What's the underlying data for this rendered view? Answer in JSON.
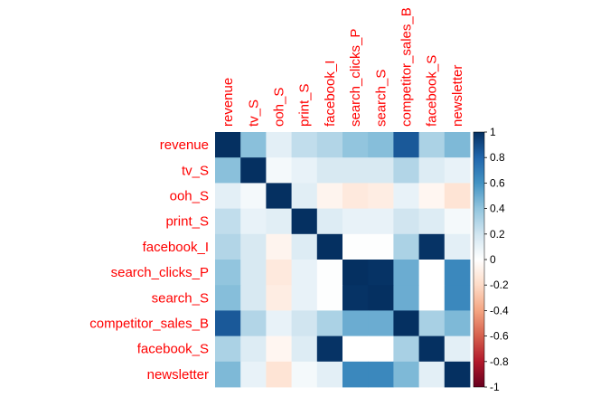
{
  "label_color": "#ff0000",
  "colorbar_ticks": [
    "1",
    "0.8",
    "0.6",
    "0.4",
    "0.2",
    "0",
    "-0.2",
    "-0.4",
    "-0.6",
    "-0.8",
    "-1"
  ],
  "chart_data": {
    "type": "heatmap",
    "title": "",
    "variables": [
      "revenue",
      "tv_S",
      "ooh_S",
      "print_S",
      "facebook_I",
      "search_clicks_P",
      "search_S",
      "competitor_sales_B",
      "facebook_S",
      "newsletter"
    ],
    "matrix": [
      [
        1.0,
        0.42,
        0.12,
        0.25,
        0.3,
        0.4,
        0.43,
        0.85,
        0.32,
        0.45
      ],
      [
        0.42,
        1.0,
        0.05,
        0.1,
        0.17,
        0.17,
        0.17,
        0.3,
        0.15,
        0.1
      ],
      [
        0.12,
        0.05,
        1.0,
        0.13,
        -0.06,
        -0.12,
        -0.1,
        0.1,
        -0.05,
        -0.15
      ],
      [
        0.25,
        0.1,
        0.13,
        1.0,
        0.15,
        0.1,
        0.1,
        0.2,
        0.15,
        0.05
      ],
      [
        0.3,
        0.17,
        -0.06,
        0.15,
        1.0,
        0.01,
        0.01,
        0.32,
        0.99,
        0.12
      ],
      [
        0.4,
        0.17,
        -0.12,
        0.1,
        0.01,
        1.0,
        0.99,
        0.5,
        0.0,
        0.65
      ],
      [
        0.43,
        0.17,
        -0.1,
        0.1,
        0.01,
        0.99,
        1.0,
        0.5,
        0.0,
        0.65
      ],
      [
        0.85,
        0.3,
        0.1,
        0.2,
        0.32,
        0.5,
        0.5,
        1.0,
        0.33,
        0.45
      ],
      [
        0.32,
        0.15,
        -0.05,
        0.15,
        0.99,
        0.0,
        0.0,
        0.33,
        1.0,
        0.12
      ],
      [
        0.45,
        0.1,
        -0.15,
        0.05,
        0.12,
        0.65,
        0.65,
        0.45,
        0.12,
        1.0
      ]
    ],
    "colorbar_range": [
      -1,
      1
    ],
    "colorscale": [
      "#67001f",
      "#b2182b",
      "#d6604d",
      "#f4a582",
      "#fddbc7",
      "#ffffff",
      "#d1e5f0",
      "#92c5de",
      "#4393c3",
      "#2166ac",
      "#053061"
    ]
  }
}
